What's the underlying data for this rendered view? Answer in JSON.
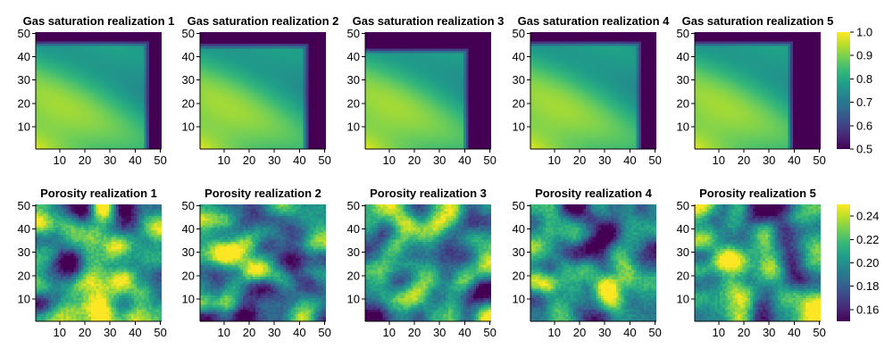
{
  "chart_data": {
    "type": "heatmap",
    "grid_size": 50,
    "colormap": "viridis",
    "colormap_stops": [
      "#440154",
      "#482878",
      "#3e4989",
      "#31688e",
      "#26828e",
      "#1f9e89",
      "#35b779",
      "#6ece58",
      "#b5de2b",
      "#fde725"
    ],
    "rows": [
      {
        "label": "Gas saturation",
        "colorbar": {
          "min": 0.5,
          "max": 1.0,
          "ticks": [
            "0.5",
            "0.6",
            "0.7",
            "0.8",
            "0.9",
            "1.0"
          ]
        },
        "panels": [
          {
            "title": "Gas saturation realization 1",
            "xticks": [
              "10",
              "20",
              "30",
              "40",
              "50"
            ],
            "yticks": [
              "10",
              "20",
              "30",
              "40",
              "50"
            ],
            "front_x": 46,
            "front_y": 47
          },
          {
            "title": "Gas saturation realization 2",
            "xticks": [
              "10",
              "20",
              "30",
              "40",
              "50"
            ],
            "yticks": [
              "10",
              "20",
              "30",
              "40",
              "50"
            ],
            "front_x": 44,
            "front_y": 46
          },
          {
            "title": "Gas saturation realization 3",
            "xticks": [
              "10",
              "20",
              "30",
              "40",
              "50"
            ],
            "yticks": [
              "10",
              "20",
              "30",
              "40",
              "50"
            ],
            "front_x": 42,
            "front_y": 44
          },
          {
            "title": "Gas saturation realization 4",
            "xticks": [
              "10",
              "20",
              "30",
              "40",
              "50"
            ],
            "yticks": [
              "10",
              "20",
              "30",
              "40",
              "50"
            ],
            "front_x": 45,
            "front_y": 47
          },
          {
            "title": "Gas saturation realization 5",
            "xticks": [
              "10",
              "20",
              "30",
              "40",
              "50"
            ],
            "yticks": [
              "10",
              "20",
              "30",
              "40",
              "50"
            ],
            "front_x": 40,
            "front_y": 47
          }
        ]
      },
      {
        "label": "Porosity",
        "colorbar": {
          "min": 0.15,
          "max": 0.25,
          "ticks": [
            "0.16",
            "0.18",
            "0.20",
            "0.22",
            "0.24"
          ]
        },
        "panels": [
          {
            "title": "Porosity realization 1",
            "xticks": [
              "10",
              "20",
              "30",
              "40",
              "50"
            ],
            "yticks": [
              "10",
              "20",
              "30",
              "40",
              "50"
            ],
            "seed": 11
          },
          {
            "title": "Porosity realization 2",
            "xticks": [
              "10",
              "20",
              "30",
              "40",
              "50"
            ],
            "yticks": [
              "10",
              "20",
              "30",
              "40",
              "50"
            ],
            "seed": 23
          },
          {
            "title": "Porosity realization 3",
            "xticks": [
              "10",
              "20",
              "30",
              "40",
              "50"
            ],
            "yticks": [
              "10",
              "20",
              "30",
              "40",
              "50"
            ],
            "seed": 37
          },
          {
            "title": "Porosity realization 4",
            "xticks": [
              "10",
              "20",
              "30",
              "40",
              "50"
            ],
            "yticks": [
              "10",
              "20",
              "30",
              "40",
              "50"
            ],
            "seed": 41
          },
          {
            "title": "Porosity realization 5",
            "xticks": [
              "10",
              "20",
              "30",
              "40",
              "50"
            ],
            "yticks": [
              "10",
              "20",
              "30",
              "40",
              "50"
            ],
            "seed": 59
          }
        ]
      }
    ]
  }
}
